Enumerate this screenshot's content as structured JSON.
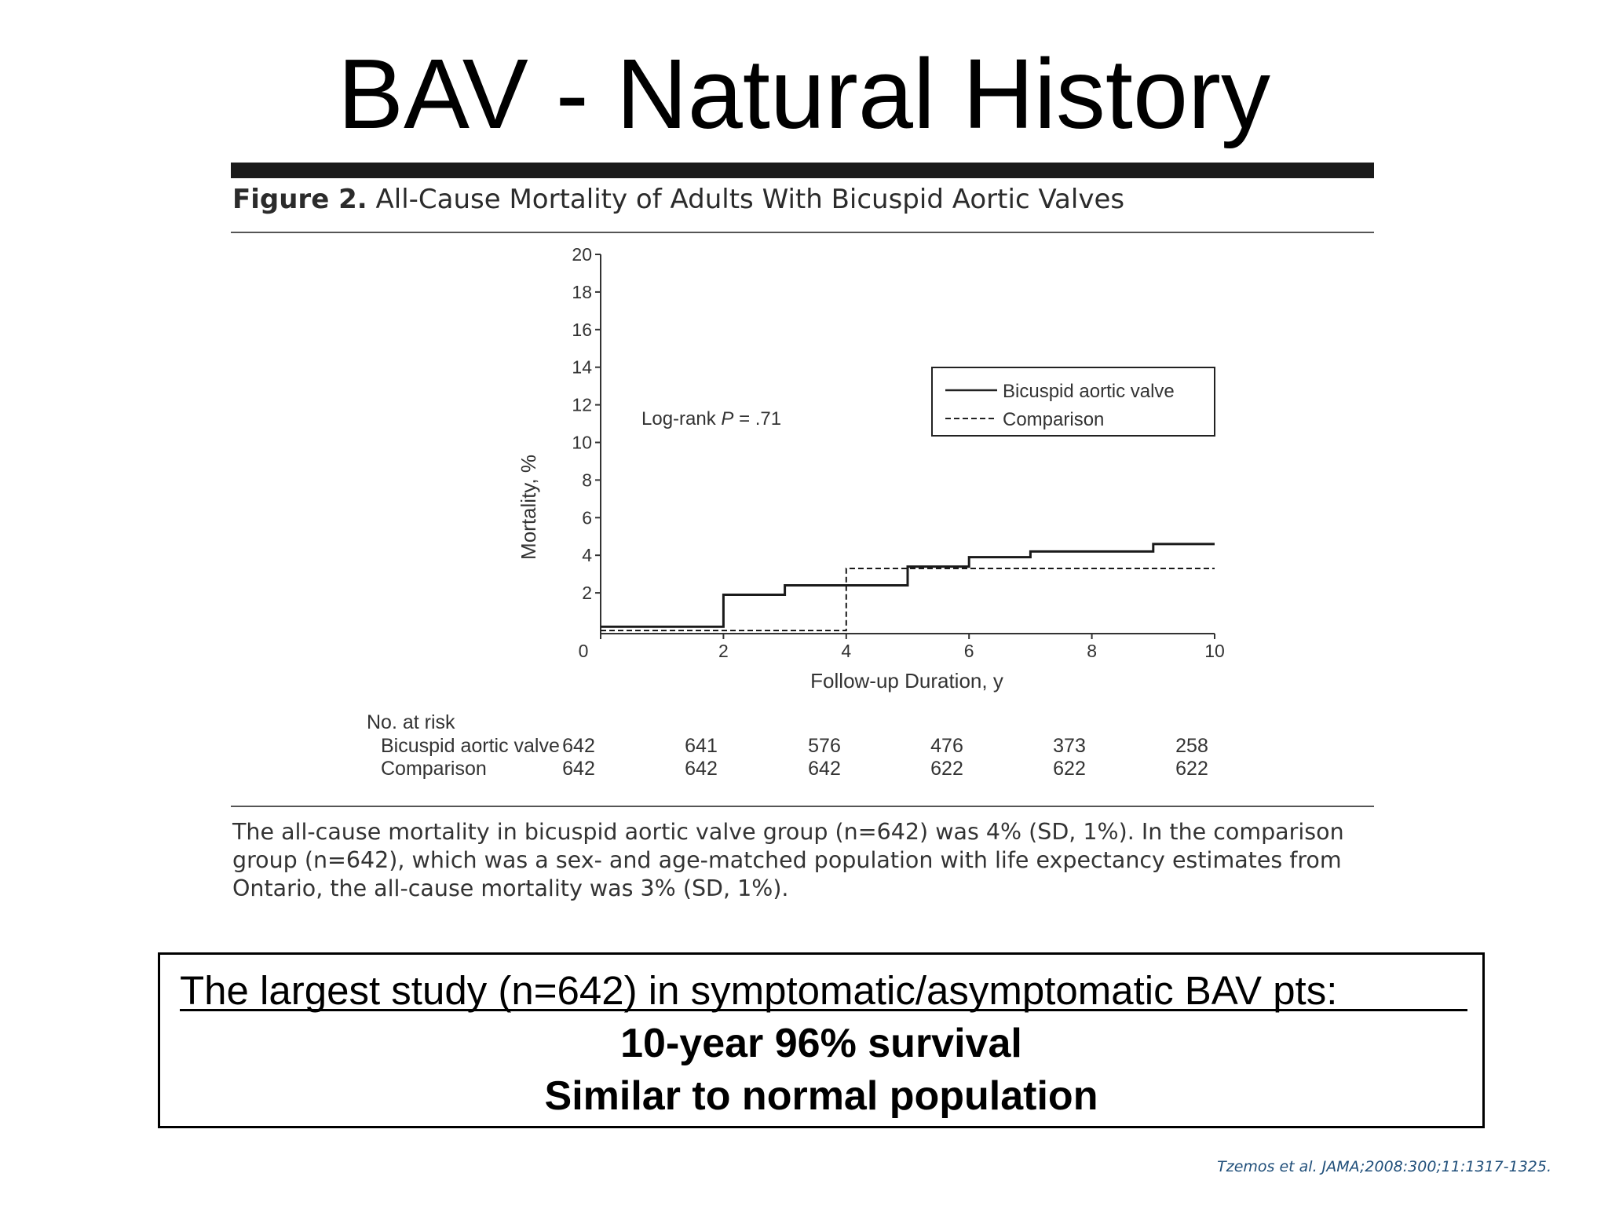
{
  "slide_title": "BAV - Natural History",
  "figure": {
    "label": "Figure 2.",
    "title": "All-Cause Mortality of Adults With Bicuspid Aortic Valves",
    "annotation_prefix": "Log-rank ",
    "annotation_p": "P",
    "annotation_value": " = .71",
    "notes": "The all-cause mortality in bicuspid aortic valve group (n=642) was 4% (SD, 1%). In the comparison group (n=642), which was a sex- and age-matched population with life expectancy estimates from Ontario, the all-cause mortality was 3% (SD, 1%)."
  },
  "risk_table": {
    "heading": "No. at risk",
    "rows": [
      {
        "label": "Bicuspid aortic valve",
        "values": [
          "642",
          "641",
          "576",
          "476",
          "373",
          "258"
        ]
      },
      {
        "label": "Comparison",
        "values": [
          "642",
          "642",
          "642",
          "622",
          "622",
          "622"
        ]
      }
    ]
  },
  "chart_data": {
    "type": "line",
    "step": true,
    "xlabel": "Follow-up Duration, y",
    "ylabel": "Mortality, %",
    "xlim": [
      0,
      10
    ],
    "ylim": [
      0,
      20
    ],
    "xticks": [
      "0",
      "2",
      "4",
      "6",
      "8",
      "10"
    ],
    "yticks": [
      "2",
      "4",
      "6",
      "8",
      "10",
      "12",
      "14",
      "16",
      "18",
      "20"
    ],
    "legend_position": "top-right",
    "series": [
      {
        "name": "Bicuspid aortic valve",
        "line_style": "solid",
        "x": [
          0,
          2,
          3,
          5,
          6,
          7,
          9,
          10
        ],
        "y": [
          0.2,
          1.9,
          2.4,
          3.4,
          3.9,
          4.2,
          4.6,
          4.6
        ]
      },
      {
        "name": "Comparison",
        "line_style": "dashed",
        "x": [
          0,
          4,
          10
        ],
        "y": [
          0,
          3.3,
          3.3
        ]
      }
    ]
  },
  "summary": {
    "line1": "The largest study (n=642) in symptomatic/asymptomatic BAV pts:",
    "line2": "10-year 96% survival",
    "line3": "Similar to normal population"
  },
  "citation": "Tzemos et al. JAMA;2008:300;11:1317-1325."
}
